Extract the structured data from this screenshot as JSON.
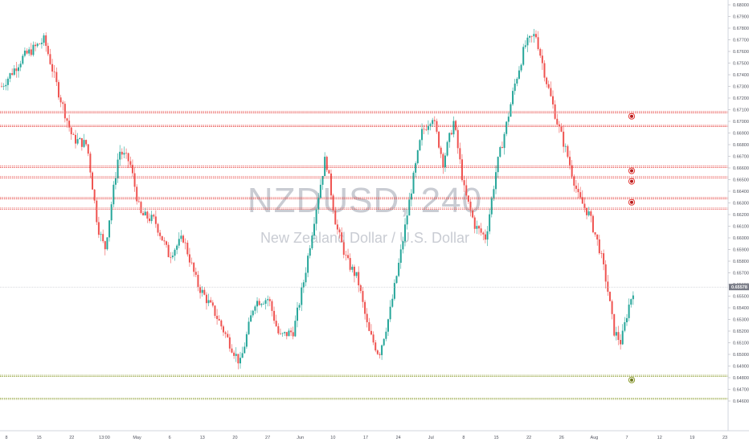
{
  "watermark": {
    "symbol": "NZDUSD, 240",
    "description": "New Zealand Dollar / U.S. Dollar"
  },
  "colors": {
    "up": "#26a69a",
    "down": "#ef5350",
    "resistance": "#e53935",
    "support": "#8a9a2a",
    "axis_text": "#50535e",
    "watermark": "#c9ccd3",
    "price_tag": "#787b86"
  },
  "icons": {
    "resistance_alert": "red-alert-circle-icon",
    "support_alert": "green-alert-circle-icon"
  },
  "chart_data": {
    "type": "candlestick",
    "symbol": "NZDUSD",
    "interval": "240",
    "current_price": "0.65578",
    "y_axis": {
      "ylim": [
        0.644,
        0.68
      ],
      "ticks": [
        "0.68000",
        "0.67900",
        "0.67800",
        "0.67700",
        "0.67600",
        "0.67500",
        "0.67400",
        "0.67300",
        "0.67200",
        "0.67100",
        "0.67000",
        "0.66900",
        "0.66800",
        "0.66700",
        "0.66600",
        "0.66500",
        "0.66400",
        "0.66300",
        "0.66200",
        "0.66100",
        "0.66000",
        "0.65900",
        "0.65800",
        "0.65700",
        "0.65600",
        "0.65500",
        "0.65400",
        "0.65300",
        "0.65200",
        "0.65100",
        "0.65000",
        "0.64900",
        "0.64800",
        "0.64700",
        "0.64600"
      ]
    },
    "x_axis": {
      "labels": [
        "8",
        "15",
        "22",
        "13:00",
        "May",
        "6",
        "13",
        "20",
        "27",
        "Jun",
        "10",
        "17",
        "24",
        "Jul",
        "8",
        "15",
        "22",
        "26",
        "Aug",
        "7",
        "12",
        "19",
        "23"
      ]
    },
    "horizontal_levels": [
      {
        "kind": "resistance",
        "price": 0.67078,
        "alert": true
      },
      {
        "kind": "resistance",
        "price": 0.6696,
        "alert": false
      },
      {
        "kind": "resistance",
        "price": 0.6661,
        "alert": true
      },
      {
        "kind": "resistance",
        "price": 0.6652,
        "alert": true
      },
      {
        "kind": "resistance",
        "price": 0.6634,
        "alert": true
      },
      {
        "kind": "resistance",
        "price": 0.6625,
        "alert": false
      },
      {
        "kind": "support",
        "price": 0.64815,
        "alert": true
      },
      {
        "kind": "support",
        "price": 0.6462,
        "alert": false
      }
    ],
    "close_path": [
      {
        "t": 0,
        "c": 0.673
      },
      {
        "t": 0.03,
        "c": 0.6755
      },
      {
        "t": 0.06,
        "c": 0.677
      },
      {
        "t": 0.08,
        "c": 0.6725
      },
      {
        "t": 0.1,
        "c": 0.6685
      },
      {
        "t": 0.12,
        "c": 0.668
      },
      {
        "t": 0.135,
        "c": 0.661
      },
      {
        "t": 0.145,
        "c": 0.659
      },
      {
        "t": 0.165,
        "c": 0.6675
      },
      {
        "t": 0.18,
        "c": 0.6665
      },
      {
        "t": 0.195,
        "c": 0.662
      },
      {
        "t": 0.215,
        "c": 0.6615
      },
      {
        "t": 0.235,
        "c": 0.6585
      },
      {
        "t": 0.255,
        "c": 0.66
      },
      {
        "t": 0.275,
        "c": 0.656
      },
      {
        "t": 0.3,
        "c": 0.6535
      },
      {
        "t": 0.32,
        "c": 0.651
      },
      {
        "t": 0.335,
        "c": 0.6492
      },
      {
        "t": 0.355,
        "c": 0.6545
      },
      {
        "t": 0.375,
        "c": 0.6548
      },
      {
        "t": 0.39,
        "c": 0.6515
      },
      {
        "t": 0.41,
        "c": 0.652
      },
      {
        "t": 0.425,
        "c": 0.6565
      },
      {
        "t": 0.44,
        "c": 0.662
      },
      {
        "t": 0.455,
        "c": 0.667
      },
      {
        "t": 0.47,
        "c": 0.661
      },
      {
        "t": 0.485,
        "c": 0.658
      },
      {
        "t": 0.5,
        "c": 0.6565
      },
      {
        "t": 0.515,
        "c": 0.652
      },
      {
        "t": 0.53,
        "c": 0.65
      },
      {
        "t": 0.545,
        "c": 0.6535
      },
      {
        "t": 0.56,
        "c": 0.6585
      },
      {
        "t": 0.575,
        "c": 0.664
      },
      {
        "t": 0.59,
        "c": 0.669
      },
      {
        "t": 0.605,
        "c": 0.6705
      },
      {
        "t": 0.62,
        "c": 0.6665
      },
      {
        "t": 0.635,
        "c": 0.67
      },
      {
        "t": 0.65,
        "c": 0.664
      },
      {
        "t": 0.665,
        "c": 0.661
      },
      {
        "t": 0.68,
        "c": 0.66
      },
      {
        "t": 0.695,
        "c": 0.666
      },
      {
        "t": 0.71,
        "c": 0.67
      },
      {
        "t": 0.72,
        "c": 0.673
      },
      {
        "t": 0.735,
        "c": 0.6765
      },
      {
        "t": 0.75,
        "c": 0.6775
      },
      {
        "t": 0.765,
        "c": 0.6735
      },
      {
        "t": 0.78,
        "c": 0.67
      },
      {
        "t": 0.795,
        "c": 0.667
      },
      {
        "t": 0.81,
        "c": 0.6635
      },
      {
        "t": 0.825,
        "c": 0.662
      },
      {
        "t": 0.84,
        "c": 0.659
      },
      {
        "t": 0.85,
        "c": 0.656
      },
      {
        "t": 0.86,
        "c": 0.652
      },
      {
        "t": 0.87,
        "c": 0.651
      },
      {
        "t": 0.88,
        "c": 0.654
      },
      {
        "t": 0.887,
        "c": 0.6555
      }
    ]
  }
}
